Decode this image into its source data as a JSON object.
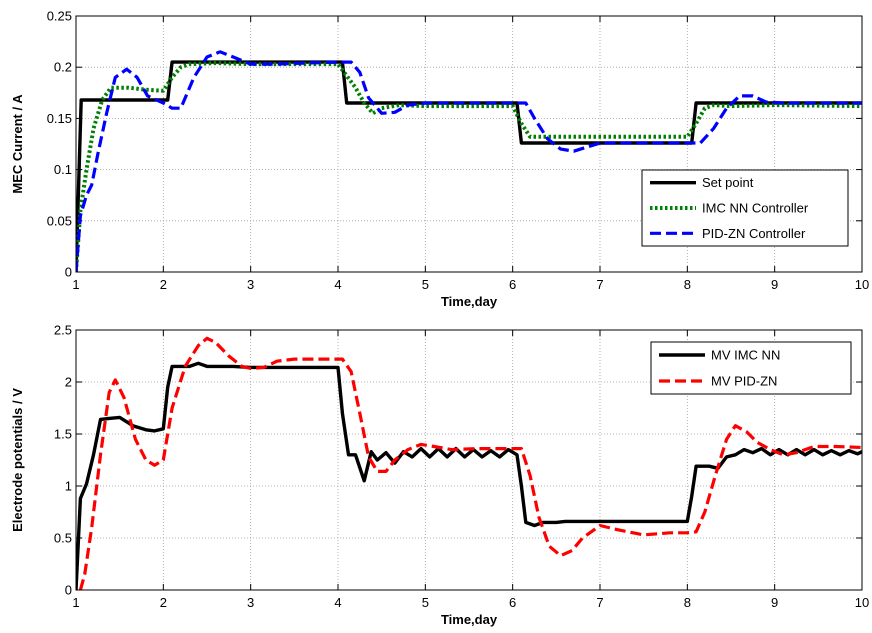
{
  "chart_data": [
    {
      "type": "line",
      "xlabel": "Time,day",
      "ylabel": "MEC Current / A",
      "xlim": [
        1,
        10
      ],
      "ylim": [
        0,
        0.25
      ],
      "xticks": [
        "1",
        "2",
        "3",
        "4",
        "5",
        "6",
        "7",
        "8",
        "9",
        "10"
      ],
      "yticks": [
        "0",
        "0.05",
        "0.1",
        "0.15",
        "0.2",
        "0.25"
      ],
      "grid": true,
      "legend_position": "lower-right",
      "series": [
        {
          "name": "Set point",
          "color": "#000000",
          "style": "solid",
          "points": [
            [
              1,
              0
            ],
            [
              1.06,
              0.168
            ],
            [
              2.05,
              0.168
            ],
            [
              2.1,
              0.205
            ],
            [
              4.05,
              0.205
            ],
            [
              4.1,
              0.165
            ],
            [
              6.05,
              0.165
            ],
            [
              6.1,
              0.126
            ],
            [
              8.05,
              0.126
            ],
            [
              8.1,
              0.165
            ],
            [
              10,
              0.165
            ]
          ]
        },
        {
          "name": "IMC NN Controller",
          "color": "#008000",
          "style": "dotted",
          "points": [
            [
              1,
              0
            ],
            [
              1.05,
              0.06
            ],
            [
              1.12,
              0.1
            ],
            [
              1.2,
              0.14
            ],
            [
              1.3,
              0.168
            ],
            [
              1.4,
              0.18
            ],
            [
              1.6,
              0.18
            ],
            [
              1.8,
              0.178
            ],
            [
              2.0,
              0.177
            ],
            [
              2.1,
              0.19
            ],
            [
              2.2,
              0.2
            ],
            [
              2.3,
              0.203
            ],
            [
              2.6,
              0.204
            ],
            [
              3,
              0.203
            ],
            [
              3.5,
              0.203
            ],
            [
              4.0,
              0.203
            ],
            [
              4.2,
              0.18
            ],
            [
              4.3,
              0.165
            ],
            [
              4.4,
              0.155
            ],
            [
              4.5,
              0.16
            ],
            [
              4.7,
              0.163
            ],
            [
              5,
              0.162
            ],
            [
              5.5,
              0.162
            ],
            [
              6.0,
              0.162
            ],
            [
              6.1,
              0.145
            ],
            [
              6.2,
              0.132
            ],
            [
              6.3,
              0.132
            ],
            [
              7,
              0.132
            ],
            [
              7.5,
              0.132
            ],
            [
              8.0,
              0.132
            ],
            [
              8.1,
              0.145
            ],
            [
              8.2,
              0.16
            ],
            [
              8.3,
              0.163
            ],
            [
              8.5,
              0.162
            ],
            [
              9,
              0.163
            ],
            [
              10,
              0.162
            ]
          ]
        },
        {
          "name": "PID-ZN Controller",
          "color": "#0000ff",
          "style": "dashed",
          "points": [
            [
              1,
              0
            ],
            [
              1.05,
              0.055
            ],
            [
              1.12,
              0.075
            ],
            [
              1.18,
              0.085
            ],
            [
              1.25,
              0.115
            ],
            [
              1.35,
              0.155
            ],
            [
              1.45,
              0.19
            ],
            [
              1.58,
              0.198
            ],
            [
              1.7,
              0.19
            ],
            [
              1.82,
              0.172
            ],
            [
              2.0,
              0.165
            ],
            [
              2.1,
              0.16
            ],
            [
              2.2,
              0.16
            ],
            [
              2.35,
              0.19
            ],
            [
              2.5,
              0.21
            ],
            [
              2.65,
              0.215
            ],
            [
              2.8,
              0.21
            ],
            [
              3.0,
              0.203
            ],
            [
              3.3,
              0.203
            ],
            [
              3.6,
              0.204
            ],
            [
              4.0,
              0.205
            ],
            [
              4.15,
              0.205
            ],
            [
              4.25,
              0.195
            ],
            [
              4.35,
              0.17
            ],
            [
              4.5,
              0.155
            ],
            [
              4.65,
              0.156
            ],
            [
              4.8,
              0.163
            ],
            [
              5,
              0.165
            ],
            [
              5.5,
              0.165
            ],
            [
              6.0,
              0.165
            ],
            [
              6.15,
              0.165
            ],
            [
              6.25,
              0.15
            ],
            [
              6.4,
              0.13
            ],
            [
              6.55,
              0.12
            ],
            [
              6.7,
              0.118
            ],
            [
              6.85,
              0.122
            ],
            [
              7,
              0.126
            ],
            [
              7.5,
              0.126
            ],
            [
              8.0,
              0.126
            ],
            [
              8.15,
              0.126
            ],
            [
              8.3,
              0.14
            ],
            [
              8.45,
              0.16
            ],
            [
              8.6,
              0.172
            ],
            [
              8.75,
              0.172
            ],
            [
              8.9,
              0.166
            ],
            [
              9.1,
              0.165
            ],
            [
              10,
              0.165
            ]
          ]
        }
      ]
    },
    {
      "type": "line",
      "xlabel": "Time,day",
      "ylabel": "Electrode potentials / V",
      "xlim": [
        1,
        10
      ],
      "ylim": [
        0,
        2.5
      ],
      "xticks": [
        "1",
        "2",
        "3",
        "4",
        "5",
        "6",
        "7",
        "8",
        "9",
        "10"
      ],
      "yticks": [
        "0",
        "0.5",
        "1",
        "1.5",
        "2",
        "2.5"
      ],
      "grid": true,
      "legend_position": "top-right",
      "series": [
        {
          "name": "MV IMC NN",
          "color": "#000000",
          "style": "solid",
          "points": [
            [
              1,
              0
            ],
            [
              1.05,
              0.88
            ],
            [
              1.12,
              1.02
            ],
            [
              1.2,
              1.3
            ],
            [
              1.28,
              1.64
            ],
            [
              1.38,
              1.65
            ],
            [
              1.5,
              1.66
            ],
            [
              1.65,
              1.58
            ],
            [
              1.8,
              1.54
            ],
            [
              1.9,
              1.53
            ],
            [
              2.0,
              1.55
            ],
            [
              2.05,
              1.95
            ],
            [
              2.1,
              2.15
            ],
            [
              2.3,
              2.15
            ],
            [
              2.4,
              2.18
            ],
            [
              2.5,
              2.15
            ],
            [
              2.8,
              2.15
            ],
            [
              3.0,
              2.14
            ],
            [
              3.5,
              2.14
            ],
            [
              4.0,
              2.14
            ],
            [
              4.05,
              1.7
            ],
            [
              4.12,
              1.3
            ],
            [
              4.2,
              1.3
            ],
            [
              4.3,
              1.05
            ],
            [
              4.38,
              1.33
            ],
            [
              4.45,
              1.25
            ],
            [
              4.55,
              1.32
            ],
            [
              4.65,
              1.22
            ],
            [
              4.75,
              1.33
            ],
            [
              4.85,
              1.28
            ],
            [
              4.95,
              1.36
            ],
            [
              5.05,
              1.28
            ],
            [
              5.15,
              1.36
            ],
            [
              5.25,
              1.28
            ],
            [
              5.35,
              1.36
            ],
            [
              5.45,
              1.28
            ],
            [
              5.55,
              1.35
            ],
            [
              5.65,
              1.28
            ],
            [
              5.75,
              1.34
            ],
            [
              5.85,
              1.28
            ],
            [
              5.95,
              1.35
            ],
            [
              6.05,
              1.3
            ],
            [
              6.1,
              1.0
            ],
            [
              6.15,
              0.65
            ],
            [
              6.25,
              0.62
            ],
            [
              6.35,
              0.65
            ],
            [
              6.5,
              0.65
            ],
            [
              6.6,
              0.66
            ],
            [
              7,
              0.66
            ],
            [
              7.5,
              0.66
            ],
            [
              8.0,
              0.66
            ],
            [
              8.05,
              0.9
            ],
            [
              8.1,
              1.19
            ],
            [
              8.25,
              1.19
            ],
            [
              8.35,
              1.17
            ],
            [
              8.45,
              1.28
            ],
            [
              8.55,
              1.3
            ],
            [
              8.65,
              1.35
            ],
            [
              8.75,
              1.32
            ],
            [
              8.85,
              1.36
            ],
            [
              8.95,
              1.3
            ],
            [
              9.05,
              1.35
            ],
            [
              9.15,
              1.3
            ],
            [
              9.25,
              1.35
            ],
            [
              9.35,
              1.3
            ],
            [
              9.45,
              1.35
            ],
            [
              9.55,
              1.3
            ],
            [
              9.65,
              1.34
            ],
            [
              9.75,
              1.3
            ],
            [
              9.85,
              1.34
            ],
            [
              9.95,
              1.31
            ],
            [
              10,
              1.33
            ]
          ]
        },
        {
          "name": "MV PID-ZN",
          "color": "#ff0000",
          "style": "dashed",
          "points": [
            [
              1.05,
              0
            ],
            [
              1.1,
              0.15
            ],
            [
              1.18,
              0.6
            ],
            [
              1.28,
              1.3
            ],
            [
              1.38,
              1.9
            ],
            [
              1.45,
              2.02
            ],
            [
              1.55,
              1.85
            ],
            [
              1.68,
              1.45
            ],
            [
              1.8,
              1.25
            ],
            [
              1.9,
              1.2
            ],
            [
              2.0,
              1.25
            ],
            [
              2.1,
              1.75
            ],
            [
              2.25,
              2.15
            ],
            [
              2.4,
              2.35
            ],
            [
              2.5,
              2.42
            ],
            [
              2.6,
              2.38
            ],
            [
              2.75,
              2.25
            ],
            [
              2.9,
              2.15
            ],
            [
              3.0,
              2.13
            ],
            [
              3.15,
              2.14
            ],
            [
              3.3,
              2.2
            ],
            [
              3.5,
              2.22
            ],
            [
              3.7,
              2.22
            ],
            [
              3.9,
              2.22
            ],
            [
              4.05,
              2.22
            ],
            [
              4.15,
              2.1
            ],
            [
              4.25,
              1.7
            ],
            [
              4.35,
              1.28
            ],
            [
              4.45,
              1.14
            ],
            [
              4.55,
              1.14
            ],
            [
              4.65,
              1.25
            ],
            [
              4.8,
              1.35
            ],
            [
              4.95,
              1.4
            ],
            [
              5.1,
              1.38
            ],
            [
              5.3,
              1.35
            ],
            [
              5.6,
              1.36
            ],
            [
              6.0,
              1.36
            ],
            [
              6.1,
              1.36
            ],
            [
              6.2,
              1.1
            ],
            [
              6.3,
              0.7
            ],
            [
              6.42,
              0.42
            ],
            [
              6.55,
              0.33
            ],
            [
              6.68,
              0.38
            ],
            [
              6.8,
              0.5
            ],
            [
              7.0,
              0.62
            ],
            [
              7.2,
              0.58
            ],
            [
              7.5,
              0.53
            ],
            [
              7.8,
              0.55
            ],
            [
              8.0,
              0.55
            ],
            [
              8.1,
              0.56
            ],
            [
              8.2,
              0.75
            ],
            [
              8.32,
              1.1
            ],
            [
              8.45,
              1.45
            ],
            [
              8.55,
              1.58
            ],
            [
              8.68,
              1.52
            ],
            [
              8.8,
              1.42
            ],
            [
              8.95,
              1.35
            ],
            [
              9.1,
              1.3
            ],
            [
              9.25,
              1.32
            ],
            [
              9.45,
              1.38
            ],
            [
              9.7,
              1.38
            ],
            [
              10,
              1.37
            ]
          ]
        }
      ]
    }
  ]
}
